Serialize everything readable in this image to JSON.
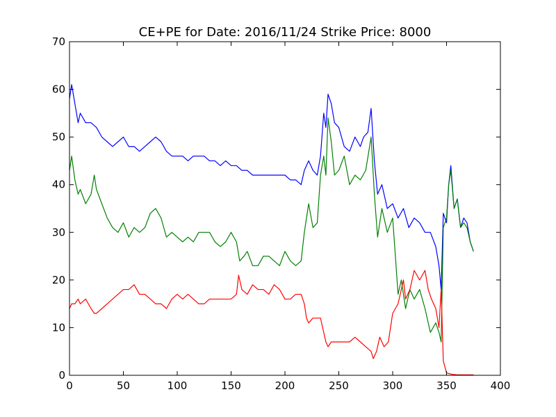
{
  "chart_data": {
    "type": "line",
    "title": "CE+PE for Date: 2016/11/24 Strike Price:  8000",
    "xlabel": "",
    "ylabel": "",
    "xlim": [
      0,
      400
    ],
    "ylim": [
      0,
      70
    ],
    "xticks": [
      "0",
      "50",
      "100",
      "150",
      "200",
      "250",
      "300",
      "350",
      "400"
    ],
    "yticks": [
      "0",
      "10",
      "20",
      "30",
      "40",
      "50",
      "60",
      "70"
    ],
    "grid": false,
    "legend": "none",
    "series": [
      {
        "color": "#0000ff",
        "x": [
          0,
          2,
          5,
          8,
          10,
          15,
          20,
          25,
          30,
          35,
          40,
          45,
          50,
          55,
          60,
          65,
          70,
          75,
          80,
          85,
          90,
          95,
          100,
          105,
          110,
          115,
          120,
          125,
          130,
          135,
          140,
          145,
          150,
          155,
          160,
          165,
          170,
          175,
          180,
          185,
          190,
          195,
          200,
          205,
          210,
          215,
          218,
          222,
          226,
          230,
          233,
          236,
          238,
          240,
          243,
          246,
          250,
          255,
          260,
          265,
          270,
          273,
          277,
          280,
          283,
          286,
          290,
          295,
          300,
          305,
          310,
          315,
          320,
          325,
          330,
          335,
          340,
          343,
          345,
          347,
          350,
          352,
          354,
          357,
          360,
          363,
          366,
          369,
          372,
          375
        ],
        "values": [
          58,
          61,
          57,
          53,
          55,
          53,
          53,
          52,
          50,
          49,
          48,
          49,
          50,
          48,
          48,
          47,
          48,
          49,
          50,
          49,
          47,
          46,
          46,
          46,
          45,
          46,
          46,
          46,
          45,
          45,
          44,
          45,
          44,
          44,
          43,
          43,
          42,
          42,
          42,
          42,
          42,
          42,
          42,
          41,
          41,
          40,
          43,
          45,
          43,
          42,
          46,
          55,
          52,
          59,
          57,
          53,
          52,
          48,
          47,
          50,
          48,
          50,
          51,
          56,
          45,
          38,
          40,
          35,
          36,
          33,
          35,
          31,
          33,
          32,
          30,
          30,
          27,
          23,
          18,
          34,
          32,
          40,
          44,
          35,
          37,
          31,
          33,
          32,
          28,
          26
        ]
      },
      {
        "color": "#008000",
        "x": [
          0,
          2,
          5,
          8,
          10,
          15,
          20,
          23,
          25,
          30,
          35,
          40,
          45,
          50,
          55,
          60,
          65,
          70,
          75,
          80,
          85,
          90,
          95,
          100,
          105,
          110,
          115,
          120,
          125,
          130,
          135,
          140,
          145,
          150,
          155,
          158,
          162,
          165,
          170,
          175,
          180,
          185,
          190,
          195,
          200,
          205,
          210,
          215,
          218,
          222,
          226,
          230,
          233,
          236,
          238,
          240,
          243,
          246,
          250,
          255,
          260,
          265,
          270,
          275,
          280,
          283,
          286,
          290,
          295,
          300,
          305,
          308,
          312,
          316,
          320,
          325,
          330,
          335,
          340,
          343,
          345,
          347,
          350,
          352,
          354,
          357,
          360,
          363,
          366,
          369,
          372,
          375
        ],
        "values": [
          43,
          46,
          41,
          38,
          39,
          36,
          38,
          42,
          39,
          36,
          33,
          31,
          30,
          32,
          29,
          31,
          30,
          31,
          34,
          35,
          33,
          29,
          30,
          29,
          28,
          29,
          28,
          30,
          30,
          30,
          28,
          27,
          28,
          30,
          28,
          24,
          25,
          26,
          23,
          23,
          25,
          25,
          24,
          23,
          26,
          24,
          23,
          24,
          30,
          36,
          31,
          32,
          42,
          46,
          42,
          54,
          49,
          42,
          43,
          46,
          40,
          42,
          41,
          43,
          50,
          38,
          29,
          35,
          30,
          33,
          17,
          20,
          14,
          18,
          16,
          18,
          14,
          9,
          11,
          9,
          7,
          31,
          33,
          40,
          43,
          35,
          37,
          31,
          32,
          31,
          28,
          26
        ]
      },
      {
        "color": "#ff0000",
        "x": [
          0,
          2,
          5,
          8,
          10,
          15,
          20,
          23,
          25,
          30,
          35,
          40,
          45,
          50,
          55,
          60,
          65,
          70,
          75,
          80,
          85,
          90,
          95,
          100,
          105,
          110,
          115,
          120,
          125,
          130,
          135,
          140,
          145,
          150,
          155,
          157,
          160,
          165,
          170,
          175,
          180,
          185,
          190,
          195,
          200,
          205,
          210,
          215,
          218,
          220,
          222,
          226,
          230,
          233,
          236,
          238,
          240,
          243,
          246,
          250,
          255,
          260,
          265,
          270,
          275,
          280,
          282,
          285,
          288,
          292,
          296,
          300,
          305,
          310,
          312,
          316,
          320,
          325,
          330,
          333,
          336,
          340,
          343,
          345,
          347,
          350,
          355,
          360,
          365,
          370,
          375
        ],
        "values": [
          14,
          15,
          15,
          16,
          15,
          16,
          14,
          13,
          13,
          14,
          15,
          16,
          17,
          18,
          18,
          19,
          17,
          17,
          16,
          15,
          15,
          14,
          16,
          17,
          16,
          17,
          16,
          15,
          15,
          16,
          16,
          16,
          16,
          16,
          17,
          21,
          18,
          17,
          19,
          18,
          18,
          17,
          19,
          18,
          16,
          16,
          17,
          17,
          15,
          12,
          11,
          12,
          12,
          12,
          9,
          7,
          6,
          7,
          7,
          7,
          7,
          7,
          8,
          7,
          6,
          5,
          3.5,
          5,
          8,
          6,
          7,
          13,
          15,
          20,
          16,
          18,
          22,
          20,
          22,
          18,
          16,
          14,
          10,
          18,
          3,
          0.5,
          0.2,
          0.1,
          0.1,
          0.1,
          0.1
        ]
      }
    ]
  }
}
